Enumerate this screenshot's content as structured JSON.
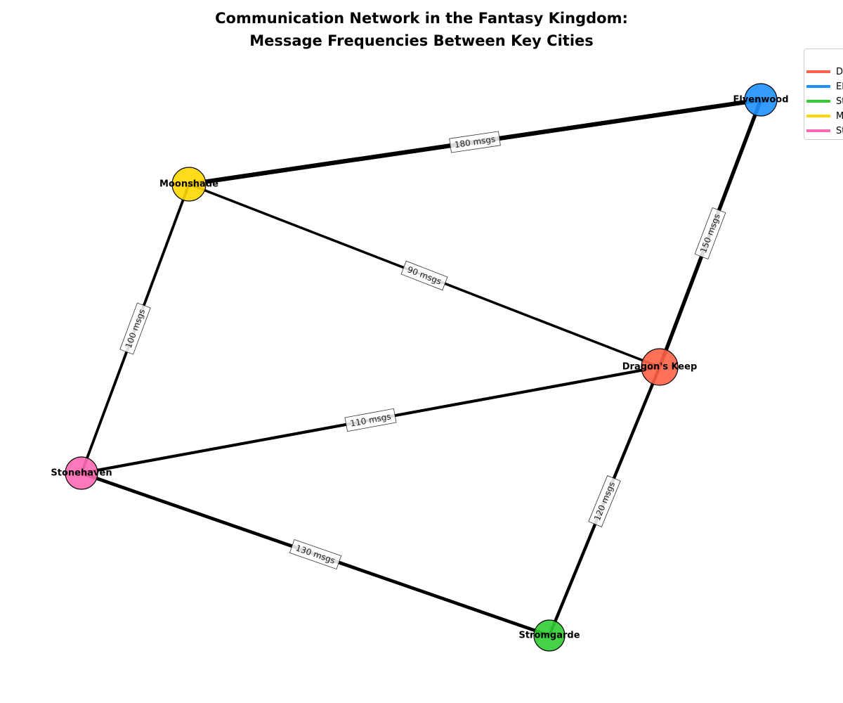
{
  "title_lines": [
    "Communication Network in the Fantasy Kingdom:",
    "Message Frequencies Between Key Cities"
  ],
  "nodes": [
    {
      "id": "dragons_keep",
      "name": "Dragon's Keep",
      "color": "#ff6347"
    },
    {
      "id": "elvenwood",
      "name": "Elvenwood",
      "color": "#1e90ff"
    },
    {
      "id": "stromgarde",
      "name": "Stromgarde",
      "color": "#32cd32"
    },
    {
      "id": "moonshade",
      "name": "Moonshade",
      "color": "#ffd700"
    },
    {
      "id": "stonehaven",
      "name": "Stonehaven",
      "color": "#ff69b4"
    }
  ],
  "edges": [
    {
      "source": "moonshade",
      "target": "elvenwood",
      "messages": 180,
      "label": "180 msgs"
    },
    {
      "source": "elvenwood",
      "target": "dragons_keep",
      "messages": 150,
      "label": "150 msgs"
    },
    {
      "source": "moonshade",
      "target": "dragons_keep",
      "messages": 90,
      "label": "90 msgs"
    },
    {
      "source": "moonshade",
      "target": "stonehaven",
      "messages": 100,
      "label": "100 msgs"
    },
    {
      "source": "stonehaven",
      "target": "dragons_keep",
      "messages": 110,
      "label": "110 msgs"
    },
    {
      "source": "stonehaven",
      "target": "stromgarde",
      "messages": 130,
      "label": "130 msgs"
    },
    {
      "source": "dragons_keep",
      "target": "stromgarde",
      "messages": 120,
      "label": "120 msgs"
    }
  ],
  "legend": {
    "entries": [
      {
        "label": "D",
        "color": "#ff6347"
      },
      {
        "label": "El",
        "color": "#1e90ff"
      },
      {
        "label": "St",
        "color": "#32cd32"
      },
      {
        "label": "M",
        "color": "#ffd700"
      },
      {
        "label": "St",
        "color": "#ff69b4"
      }
    ]
  }
}
